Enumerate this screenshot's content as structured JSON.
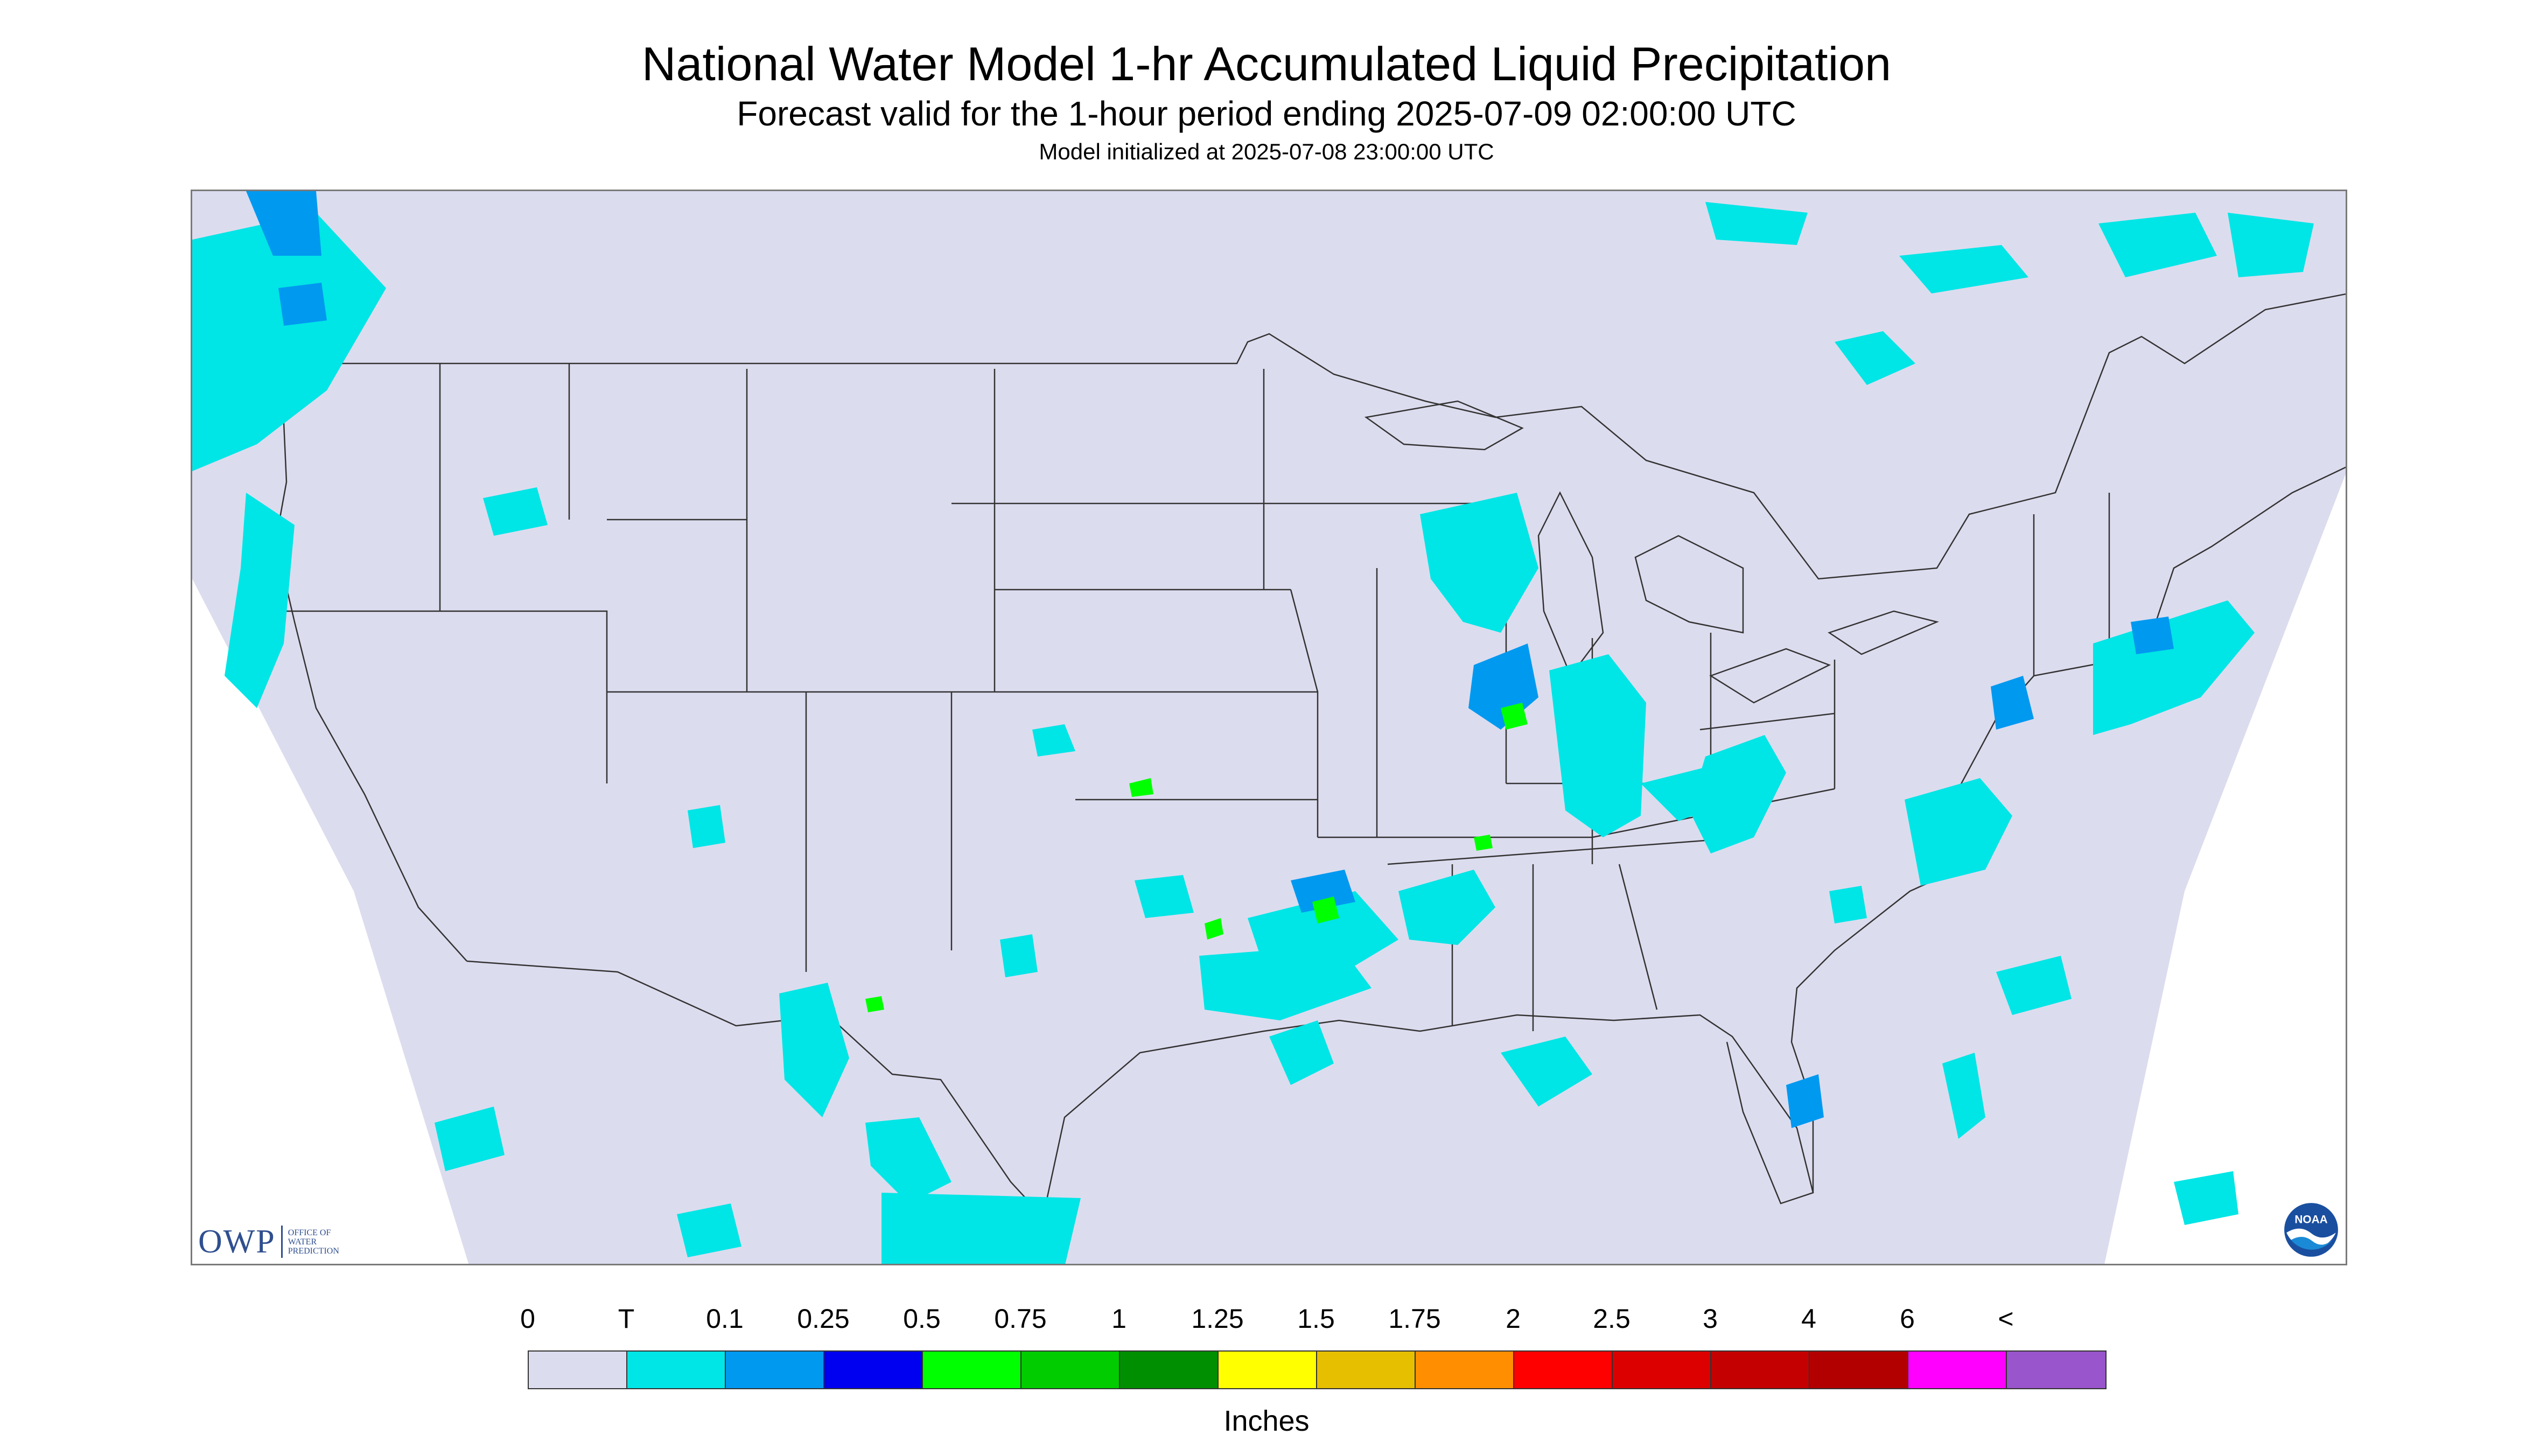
{
  "header": {
    "title": "National Water Model 1-hr Accumulated Liquid Precipitation",
    "subtitle": "Forecast valid for the 1-hour period ending 2025-07-09 02:00:00 UTC",
    "init_line": "Model initialized at 2025-07-08 23:00:00 UTC"
  },
  "map": {
    "region": "CONUS",
    "background_color": "#dcdcef",
    "boundary_color": "#333333"
  },
  "logos": {
    "owp_text": "OWP",
    "owp_subtext": [
      "OFFICE OF",
      "WATER",
      "PREDICTION"
    ],
    "noaa_text": "NOAA"
  },
  "legend": {
    "labels": [
      "0",
      "T",
      "0.1",
      "0.25",
      "0.5",
      "0.75",
      "1",
      "1.25",
      "1.5",
      "1.75",
      "2",
      "2.5",
      "3",
      "4",
      "6",
      "<"
    ],
    "colors": [
      "#dcdcef",
      "#00e5e5",
      "#0099f0",
      "#0000f0",
      "#00ff00",
      "#00cc00",
      "#008f00",
      "#ffff00",
      "#e6bf00",
      "#ff8f00",
      "#ff0000",
      "#dd0000",
      "#c40000",
      "#b20000",
      "#ff00ff",
      "#9955cc"
    ],
    "units": "Inches"
  }
}
